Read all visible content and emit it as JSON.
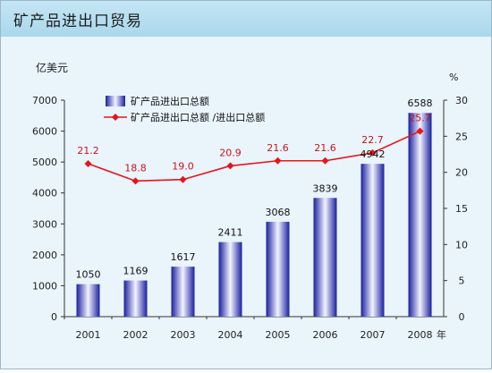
{
  "title": "矿产品进出口贸易",
  "chart_data": {
    "type": "bar",
    "categories": [
      "2001",
      "2002",
      "2003",
      "2004",
      "2005",
      "2006",
      "2007",
      "2008"
    ],
    "x_unit": "年",
    "series": [
      {
        "name": "矿产品进出口总额",
        "type": "bar",
        "axis": "left",
        "values": [
          1050,
          1169,
          1617,
          2411,
          3068,
          3839,
          4942,
          6588
        ]
      },
      {
        "name": "矿产品进出口总额 /进出口总额",
        "type": "line",
        "axis": "right",
        "values": [
          21.2,
          18.8,
          19.0,
          20.9,
          21.6,
          21.6,
          22.7,
          25.7
        ]
      }
    ],
    "ylabel_left": "亿美元",
    "ylabel_right": "%",
    "ylim_left": [
      0,
      7000
    ],
    "ylim_right": [
      0,
      30
    ],
    "yticks_left": [
      "0",
      "1000",
      "2000",
      "3000",
      "4000",
      "5000",
      "6000",
      "7000"
    ],
    "yticks_right": [
      "0",
      "5",
      "10",
      "15",
      "20",
      "25",
      "30"
    ],
    "line_labels": [
      "21.2",
      "18.8",
      "19.0",
      "20.9",
      "21.6",
      "21.6",
      "22.7",
      "25.7"
    ],
    "grid": false,
    "legend_position": "top-left",
    "colors": {
      "bar_dark": "#1a1fa0",
      "bar_light": "#f2f4ff",
      "line": "#e8141c",
      "line_label": "#c8141c",
      "background": "#e9f4fb",
      "title_bar": "#b4dcef"
    }
  }
}
